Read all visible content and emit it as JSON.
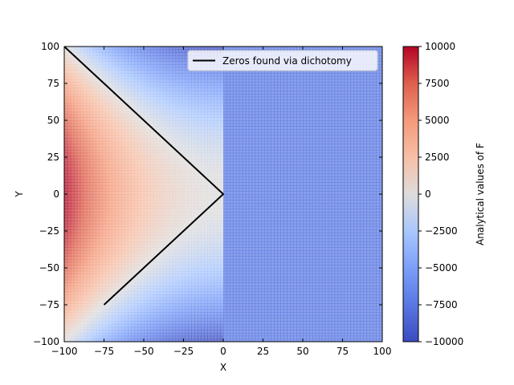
{
  "chart_data": {
    "type": "heatmap",
    "title": "",
    "xlabel": "X",
    "ylabel": "Y",
    "xlim": [
      -100,
      100
    ],
    "ylim": [
      -100,
      100
    ],
    "x_ticks": [
      -100,
      -75,
      -50,
      -25,
      0,
      25,
      50,
      75,
      100
    ],
    "y_ticks": [
      -100,
      -75,
      -50,
      -25,
      0,
      25,
      50,
      75,
      100
    ],
    "x_tick_labels": [
      "−100",
      "−75",
      "−50",
      "−25",
      "0",
      "25",
      "50",
      "75",
      "100"
    ],
    "y_tick_labels": [
      "−100",
      "−75",
      "−50",
      "−25",
      "0",
      "25",
      "50",
      "75",
      "100"
    ],
    "colormap": "coolwarm",
    "colorbar": {
      "label": "Analytical values of F",
      "range": [
        -10000,
        10000
      ],
      "ticks": [
        10000,
        7500,
        5000,
        2500,
        0,
        -2500,
        -5000,
        -7500,
        -10000
      ],
      "tick_labels": [
        "10000",
        "7500",
        "5000",
        "2500",
        "0",
        "−2500",
        "−5000",
        "−7500",
        "−10000"
      ]
    },
    "field": "F(x,y) = x^2 - y^2 for x < 0; about -7500 for x >= 0",
    "heatmap_samples": {
      "x": [
        -100,
        -75,
        -50,
        -25,
        0,
        50,
        100
      ],
      "y": [
        0,
        50,
        100
      ],
      "values": [
        [
          10000,
          5625,
          2500,
          625,
          -7500,
          -7500,
          -7500
        ],
        [
          7500,
          3125,
          0,
          -1875,
          -7500,
          -7500,
          -7500
        ],
        [
          0,
          -4375,
          -7500,
          -9375,
          -7500,
          -7500,
          -7500
        ]
      ]
    },
    "series": [
      {
        "name": "Zeros found via dichotomy",
        "type": "line",
        "color": "#000000",
        "points": [
          [
            -100,
            100
          ],
          [
            0,
            0
          ],
          [
            -75,
            -75
          ]
        ]
      }
    ],
    "legend_position": "top-right",
    "grid": false
  }
}
